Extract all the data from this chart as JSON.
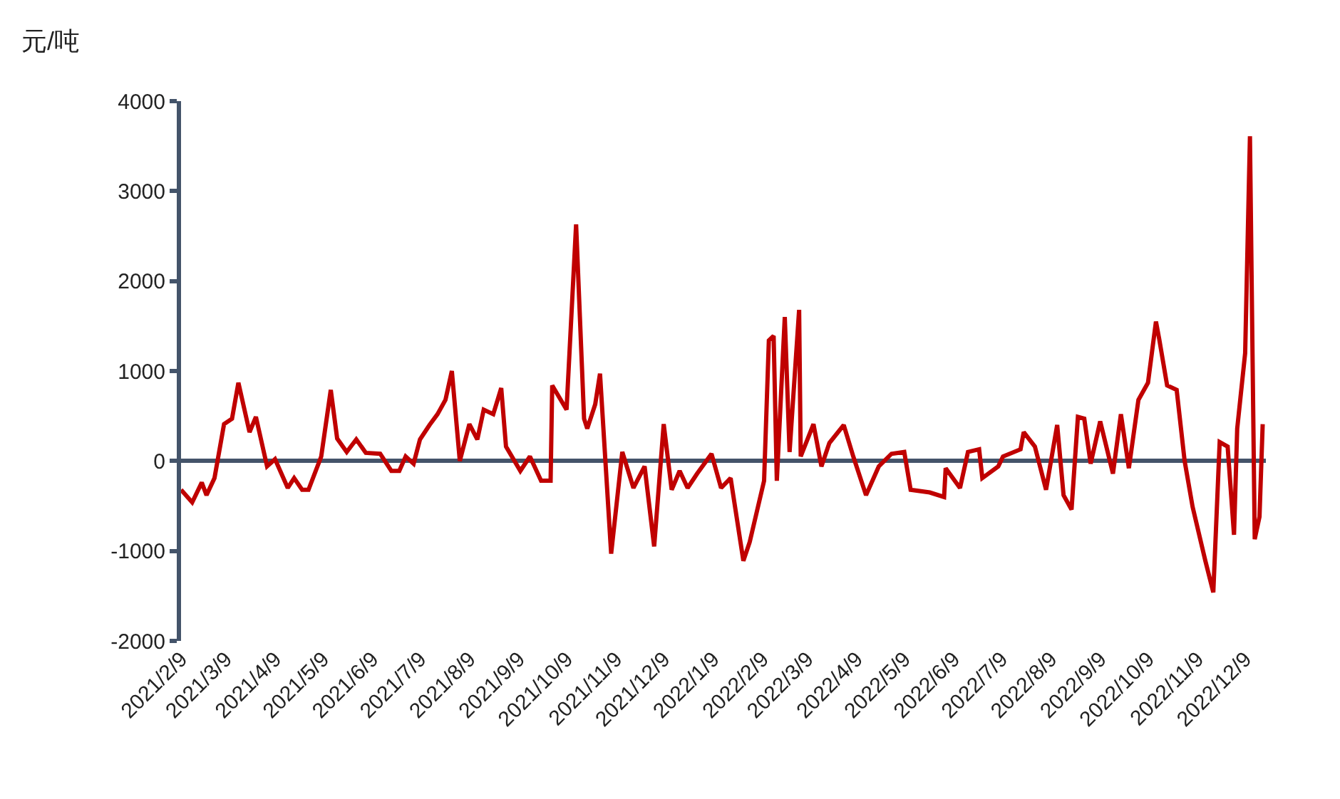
{
  "chart_data": {
    "type": "line",
    "ylabel": "元/吨",
    "x": [
      "2021-02-09",
      "2021-02-16",
      "2021-02-22",
      "2021-02-25",
      "2021-03-02",
      "2021-03-08",
      "2021-03-13",
      "2021-03-17",
      "2021-03-24",
      "2021-03-28",
      "2021-04-04",
      "2021-04-09",
      "2021-04-17",
      "2021-04-21",
      "2021-04-26",
      "2021-04-30",
      "2021-05-08",
      "2021-05-14",
      "2021-05-18",
      "2021-05-24",
      "2021-05-30",
      "2021-06-05",
      "2021-06-14",
      "2021-06-21",
      "2021-06-26",
      "2021-06-30",
      "2021-07-05",
      "2021-07-09",
      "2021-07-15",
      "2021-07-20",
      "2021-07-25",
      "2021-07-29",
      "2021-08-03",
      "2021-08-09",
      "2021-08-14",
      "2021-08-18",
      "2021-08-24",
      "2021-08-29",
      "2021-09-01",
      "2021-09-10",
      "2021-09-16",
      "2021-09-23",
      "2021-09-29",
      "2021-09-30",
      "2021-10-09",
      "2021-10-15",
      "2021-10-20",
      "2021-10-22",
      "2021-10-27",
      "2021-10-30",
      "2021-11-06",
      "2021-11-13",
      "2021-11-20",
      "2021-11-27",
      "2021-12-03",
      "2021-12-09",
      "2021-12-14",
      "2021-12-19",
      "2021-12-24",
      "2021-12-30",
      "2022-01-08",
      "2022-01-14",
      "2022-01-20",
      "2022-01-28",
      "2022-02-01",
      "2022-02-10",
      "2022-02-13",
      "2022-02-16",
      "2022-02-18",
      "2022-02-23",
      "2022-02-26",
      "2022-03-04",
      "2022-03-05",
      "2022-03-13",
      "2022-03-18",
      "2022-03-23",
      "2022-04-01",
      "2022-04-07",
      "2022-04-15",
      "2022-04-23",
      "2022-05-01",
      "2022-05-09",
      "2022-05-13",
      "2022-05-25",
      "2022-06-03",
      "2022-06-04",
      "2022-06-13",
      "2022-06-18",
      "2022-06-25",
      "2022-06-27",
      "2022-07-07",
      "2022-07-10",
      "2022-07-21",
      "2022-07-23",
      "2022-07-30",
      "2022-08-06",
      "2022-08-13",
      "2022-08-17",
      "2022-08-22",
      "2022-08-26",
      "2022-08-30",
      "2022-09-03",
      "2022-09-09",
      "2022-09-17",
      "2022-09-22",
      "2022-09-27",
      "2022-10-03",
      "2022-10-09",
      "2022-10-14",
      "2022-10-16",
      "2022-10-21",
      "2022-10-27",
      "2022-11-01",
      "2022-11-06",
      "2022-11-14",
      "2022-11-19",
      "2022-11-23",
      "2022-11-28",
      "2022-12-02",
      "2022-12-04",
      "2022-12-09",
      "2022-12-12",
      "2022-12-15",
      "2022-12-18",
      "2022-12-20"
    ],
    "series": [
      {
        "color": "#c00000",
        "values": [
          -320,
          -460,
          -240,
          -380,
          -190,
          410,
          470,
          870,
          320,
          490,
          -60,
          20,
          -300,
          -190,
          -320,
          -320,
          50,
          790,
          250,
          100,
          240,
          90,
          80,
          -110,
          -110,
          50,
          -30,
          240,
          400,
          520,
          680,
          1000,
          0,
          410,
          240,
          570,
          520,
          810,
          160,
          -110,
          50,
          -220,
          -220,
          840,
          570,
          2630,
          470,
          360,
          630,
          970,
          -1030,
          100,
          -300,
          -60,
          -950,
          410,
          -320,
          -110,
          -300,
          -140,
          80,
          -300,
          -190,
          -1110,
          -900,
          -220,
          1340,
          1390,
          -220,
          1600,
          100,
          1680,
          50,
          410,
          -60,
          200,
          400,
          50,
          -380,
          -60,
          80,
          100,
          -320,
          -350,
          -400,
          -80,
          -300,
          100,
          130,
          -190,
          -60,
          50,
          130,
          320,
          160,
          -320,
          400,
          -380,
          -540,
          490,
          470,
          -30,
          440,
          -140,
          520,
          -80,
          680,
          870,
          1550,
          1360,
          840,
          790,
          0,
          -510,
          -1110,
          -1460,
          210,
          160,
          -820,
          360,
          1200,
          3610,
          -870,
          -620,
          410
        ]
      }
    ],
    "xlim": [
      "2021-02-09",
      "2022-12-22"
    ],
    "xticks": [
      {
        "value": "2021-02-09",
        "label": "2021/2/9"
      },
      {
        "value": "2021-03-09",
        "label": "2021/3/9"
      },
      {
        "value": "2021-04-09",
        "label": "2021/4/9"
      },
      {
        "value": "2021-05-09",
        "label": "2021/5/9"
      },
      {
        "value": "2021-06-09",
        "label": "2021/6/9"
      },
      {
        "value": "2021-07-09",
        "label": "2021/7/9"
      },
      {
        "value": "2021-08-09",
        "label": "2021/8/9"
      },
      {
        "value": "2021-09-09",
        "label": "2021/9/9"
      },
      {
        "value": "2021-10-09",
        "label": "2021/10/9"
      },
      {
        "value": "2021-11-09",
        "label": "2021/11/9"
      },
      {
        "value": "2021-12-09",
        "label": "2021/12/9"
      },
      {
        "value": "2022-01-09",
        "label": "2022/1/9"
      },
      {
        "value": "2022-02-09",
        "label": "2022/2/9"
      },
      {
        "value": "2022-03-09",
        "label": "2022/3/9"
      },
      {
        "value": "2022-04-09",
        "label": "2022/4/9"
      },
      {
        "value": "2022-05-09",
        "label": "2022/5/9"
      },
      {
        "value": "2022-06-09",
        "label": "2022/6/9"
      },
      {
        "value": "2022-07-09",
        "label": "2022/7/9"
      },
      {
        "value": "2022-08-09",
        "label": "2022/8/9"
      },
      {
        "value": "2022-09-09",
        "label": "2022/9/9"
      },
      {
        "value": "2022-10-09",
        "label": "2022/10/9"
      },
      {
        "value": "2022-11-09",
        "label": "2022/11/9"
      },
      {
        "value": "2022-12-09",
        "label": "2022/12/9"
      }
    ],
    "ylim": [
      -2000,
      4000
    ],
    "yticks": [
      -2000,
      -1000,
      0,
      1000,
      2000,
      3000,
      4000
    ],
    "marker": "none",
    "line_style": "solid"
  }
}
